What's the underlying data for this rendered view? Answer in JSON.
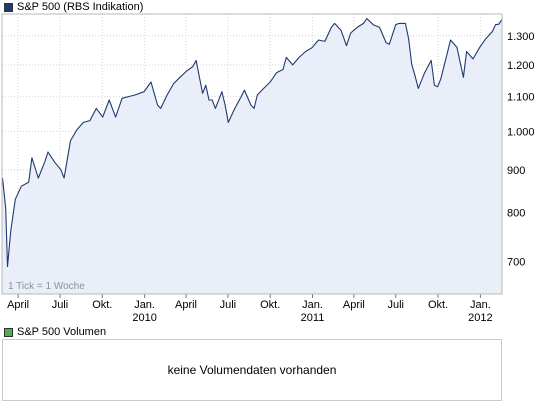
{
  "legend": {
    "price_label": "S&P 500 (RBS Indikation)",
    "volume_label": "S&P 500 Volumen",
    "price_color": "#1f3a6e",
    "volume_color": "#4caf50"
  },
  "tick_note": "1 Tick = 1 Woche",
  "volume_message": "keine Volumendaten vorhanden",
  "chart_data": {
    "type": "area",
    "title": "S&P 500 (RBS Indikation)",
    "xlabel": "",
    "ylabel": "",
    "y_scale": "log",
    "ylim": [
      640,
      1380
    ],
    "y_ticks": [
      700,
      800,
      900,
      1000,
      1100,
      1200,
      1300
    ],
    "y_tick_labels": [
      "700",
      "800",
      "900",
      "1.000",
      "1.100",
      "1.200",
      "1.300"
    ],
    "x_range": [
      "2009-02-25",
      "2012-02-17"
    ],
    "x_ticks": [
      {
        "date": "2009-04-01",
        "label": "April",
        "year": ""
      },
      {
        "date": "2009-07-01",
        "label": "Juli",
        "year": ""
      },
      {
        "date": "2009-10-01",
        "label": "Okt.",
        "year": ""
      },
      {
        "date": "2010-01-01",
        "label": "Jan.",
        "year": "2010"
      },
      {
        "date": "2010-04-01",
        "label": "April",
        "year": ""
      },
      {
        "date": "2010-07-01",
        "label": "Juli",
        "year": ""
      },
      {
        "date": "2010-10-01",
        "label": "Okt.",
        "year": ""
      },
      {
        "date": "2011-01-01",
        "label": "Jan.",
        "year": "2011"
      },
      {
        "date": "2011-04-01",
        "label": "April",
        "year": ""
      },
      {
        "date": "2011-07-01",
        "label": "Juli",
        "year": ""
      },
      {
        "date": "2011-10-01",
        "label": "Okt.",
        "year": ""
      },
      {
        "date": "2012-01-01",
        "label": "Jan.",
        "year": "2012"
      }
    ],
    "grid": true,
    "line_color": "#1f3a6e",
    "fill_color": "#e9eef9",
    "series": [
      {
        "name": "S&P 500 (RBS Indikation)",
        "points": [
          [
            "2009-02-26",
            880
          ],
          [
            "2009-03-05",
            810
          ],
          [
            "2009-03-09",
            690
          ],
          [
            "2009-03-16",
            760
          ],
          [
            "2009-03-26",
            830
          ],
          [
            "2009-04-08",
            860
          ],
          [
            "2009-04-24",
            870
          ],
          [
            "2009-05-01",
            930
          ],
          [
            "2009-05-15",
            880
          ],
          [
            "2009-05-29",
            920
          ],
          [
            "2009-06-05",
            945
          ],
          [
            "2009-06-19",
            920
          ],
          [
            "2009-07-03",
            900
          ],
          [
            "2009-07-10",
            880
          ],
          [
            "2009-07-24",
            975
          ],
          [
            "2009-08-07",
            1005
          ],
          [
            "2009-08-21",
            1025
          ],
          [
            "2009-09-04",
            1030
          ],
          [
            "2009-09-18",
            1065
          ],
          [
            "2009-10-02",
            1040
          ],
          [
            "2009-10-16",
            1090
          ],
          [
            "2009-10-30",
            1040
          ],
          [
            "2009-11-13",
            1095
          ],
          [
            "2009-11-27",
            1100
          ],
          [
            "2009-12-11",
            1105
          ],
          [
            "2009-12-31",
            1115
          ],
          [
            "2010-01-15",
            1145
          ],
          [
            "2010-01-29",
            1075
          ],
          [
            "2010-02-05",
            1065
          ],
          [
            "2010-02-19",
            1105
          ],
          [
            "2010-03-05",
            1140
          ],
          [
            "2010-03-19",
            1160
          ],
          [
            "2010-04-02",
            1180
          ],
          [
            "2010-04-16",
            1195
          ],
          [
            "2010-04-23",
            1215
          ],
          [
            "2010-05-07",
            1110
          ],
          [
            "2010-05-14",
            1135
          ],
          [
            "2010-05-21",
            1090
          ],
          [
            "2010-05-28",
            1090
          ],
          [
            "2010-06-04",
            1065
          ],
          [
            "2010-06-18",
            1115
          ],
          [
            "2010-06-25",
            1075
          ],
          [
            "2010-07-02",
            1025
          ],
          [
            "2010-07-16",
            1065
          ],
          [
            "2010-07-30",
            1100
          ],
          [
            "2010-08-06",
            1120
          ],
          [
            "2010-08-20",
            1075
          ],
          [
            "2010-08-27",
            1065
          ],
          [
            "2010-09-03",
            1105
          ],
          [
            "2010-09-17",
            1125
          ],
          [
            "2010-10-01",
            1145
          ],
          [
            "2010-10-15",
            1175
          ],
          [
            "2010-10-29",
            1185
          ],
          [
            "2010-11-05",
            1225
          ],
          [
            "2010-11-19",
            1200
          ],
          [
            "2010-12-03",
            1225
          ],
          [
            "2010-12-17",
            1245
          ],
          [
            "2010-12-31",
            1258
          ],
          [
            "2011-01-14",
            1285
          ],
          [
            "2011-01-28",
            1280
          ],
          [
            "2011-02-11",
            1330
          ],
          [
            "2011-02-18",
            1345
          ],
          [
            "2011-03-04",
            1320
          ],
          [
            "2011-03-16",
            1265
          ],
          [
            "2011-03-25",
            1310
          ],
          [
            "2011-04-08",
            1330
          ],
          [
            "2011-04-22",
            1345
          ],
          [
            "2011-04-29",
            1363
          ],
          [
            "2011-05-13",
            1340
          ],
          [
            "2011-05-27",
            1330
          ],
          [
            "2011-06-10",
            1275
          ],
          [
            "2011-06-17",
            1270
          ],
          [
            "2011-07-01",
            1340
          ],
          [
            "2011-07-08",
            1345
          ],
          [
            "2011-07-22",
            1345
          ],
          [
            "2011-07-29",
            1290
          ],
          [
            "2011-08-05",
            1200
          ],
          [
            "2011-08-11",
            1170
          ],
          [
            "2011-08-19",
            1125
          ],
          [
            "2011-09-02",
            1175
          ],
          [
            "2011-09-16",
            1215
          ],
          [
            "2011-09-23",
            1135
          ],
          [
            "2011-09-30",
            1130
          ],
          [
            "2011-10-07",
            1155
          ],
          [
            "2011-10-21",
            1240
          ],
          [
            "2011-10-28",
            1285
          ],
          [
            "2011-11-11",
            1260
          ],
          [
            "2011-11-25",
            1160
          ],
          [
            "2011-12-02",
            1245
          ],
          [
            "2011-12-16",
            1220
          ],
          [
            "2011-12-30",
            1258
          ],
          [
            "2012-01-13",
            1290
          ],
          [
            "2012-01-27",
            1315
          ],
          [
            "2012-02-03",
            1340
          ],
          [
            "2012-02-10",
            1342
          ],
          [
            "2012-02-17",
            1360
          ]
        ]
      }
    ]
  }
}
